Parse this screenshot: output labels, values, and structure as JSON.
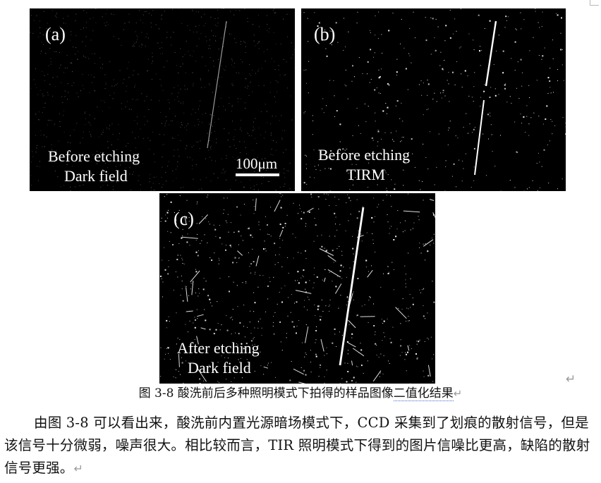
{
  "panels": {
    "a": {
      "label": "(a)",
      "text_line1": "Before etching",
      "text_line2": "Dark field",
      "scalebar": "100μm"
    },
    "b": {
      "label": "(b)",
      "text_line1": "Before etching",
      "text_line2": "TIRM"
    },
    "c": {
      "label": "(c)",
      "text_line1": "After etching",
      "text_line2": "Dark field"
    }
  },
  "caption": {
    "prefix": "图 3-8  酸洗前后多种照明模式下拍得的样品图像",
    "underlined": "二值化结果"
  },
  "body": {
    "paragraph": "由图 3-8 可以看出来，酸洗前内置光源暗场模式下，CCD 采集到了划痕的散射信号，但是该信号十分微弱，噪声很大。相比较而言，TIR 照明模式下得到的图片信噪比更高，缺陷的散射信号更强。"
  },
  "symbols": {
    "return_mark": "↵"
  }
}
